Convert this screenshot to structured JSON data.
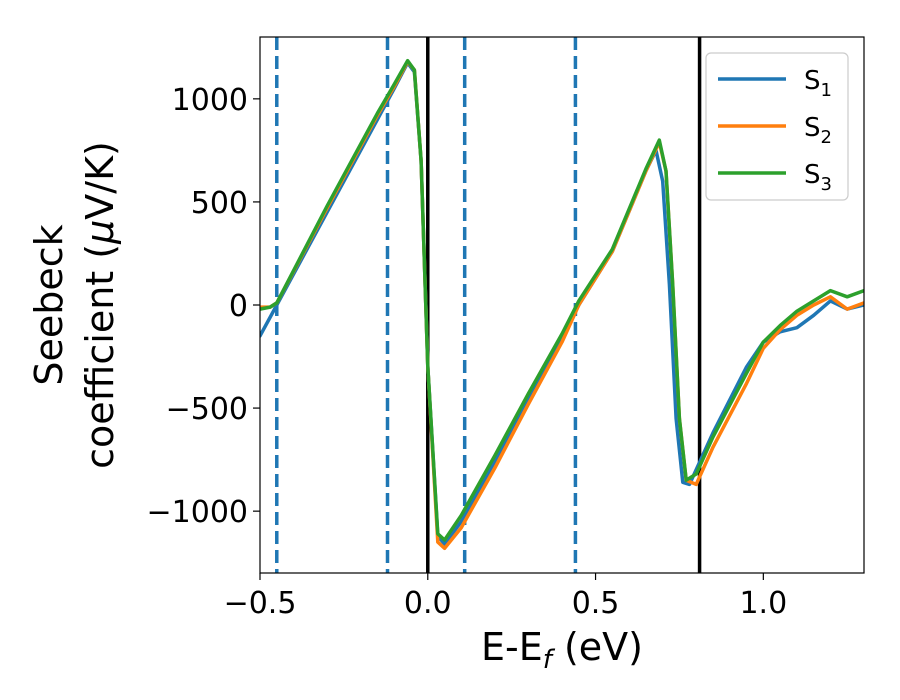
{
  "chart_data": {
    "type": "line",
    "xlabel": "E-E",
    "xlabel_sub": "f",
    "xlabel_unit": " (eV)",
    "ylabel_line1": "Seebeck",
    "ylabel_line2_a": "coefficient  (",
    "ylabel_mu": "μ",
    "ylabel_line2_b": "V/K)",
    "xlim": [
      -0.5,
      1.3
    ],
    "ylim": [
      -1300,
      1300
    ],
    "xticks": [
      -0.5,
      0.0,
      0.5,
      1.0
    ],
    "xtick_labels": [
      "−0.5",
      "0.0",
      "0.5",
      "1.0"
    ],
    "yticks": [
      1000,
      500,
      0,
      -500,
      -1000
    ],
    "ytick_labels": [
      "1000",
      "500",
      "0",
      "−500",
      "−1000"
    ],
    "grid": false,
    "legend_placement": "top-right",
    "vlines_dashed": [
      -0.45,
      -0.12,
      0.11,
      0.44
    ],
    "vlines_solid": [
      0.0,
      0.81
    ],
    "vline_dashed_color": "#1f77b4",
    "vline_solid_color": "#000000",
    "series": [
      {
        "name": "S",
        "sub": "1",
        "color": "#1f77b4",
        "points": [
          [
            -0.5,
            -150
          ],
          [
            -0.45,
            0
          ],
          [
            -0.3,
            450
          ],
          [
            -0.15,
            900
          ],
          [
            -0.1,
            1050
          ],
          [
            -0.06,
            1175
          ],
          [
            -0.04,
            1130
          ],
          [
            -0.02,
            700
          ],
          [
            0.0,
            -300
          ],
          [
            0.03,
            -1120
          ],
          [
            0.05,
            -1160
          ],
          [
            0.1,
            -1050
          ],
          [
            0.2,
            -760
          ],
          [
            0.3,
            -450
          ],
          [
            0.4,
            -150
          ],
          [
            0.45,
            0
          ],
          [
            0.55,
            260
          ],
          [
            0.65,
            650
          ],
          [
            0.68,
            750
          ],
          [
            0.7,
            600
          ],
          [
            0.72,
            100
          ],
          [
            0.74,
            -550
          ],
          [
            0.76,
            -860
          ],
          [
            0.78,
            -870
          ],
          [
            0.85,
            -620
          ],
          [
            0.95,
            -300
          ],
          [
            1.0,
            -180
          ],
          [
            1.05,
            -130
          ],
          [
            1.1,
            -110
          ],
          [
            1.15,
            -50
          ],
          [
            1.2,
            20
          ],
          [
            1.25,
            -20
          ],
          [
            1.3,
            0
          ]
        ]
      },
      {
        "name": "S",
        "sub": "2",
        "color": "#ff7f0e",
        "points": [
          [
            -0.5,
            -10
          ],
          [
            -0.47,
            -10
          ],
          [
            -0.45,
            10
          ],
          [
            -0.3,
            470
          ],
          [
            -0.15,
            920
          ],
          [
            -0.1,
            1060
          ],
          [
            -0.06,
            1180
          ],
          [
            -0.04,
            1140
          ],
          [
            -0.02,
            700
          ],
          [
            0.0,
            -300
          ],
          [
            0.03,
            -1150
          ],
          [
            0.05,
            -1180
          ],
          [
            0.1,
            -1080
          ],
          [
            0.2,
            -790
          ],
          [
            0.3,
            -480
          ],
          [
            0.4,
            -180
          ],
          [
            0.45,
            0
          ],
          [
            0.55,
            260
          ],
          [
            0.65,
            650
          ],
          [
            0.69,
            790
          ],
          [
            0.71,
            650
          ],
          [
            0.73,
            100
          ],
          [
            0.75,
            -550
          ],
          [
            0.77,
            -850
          ],
          [
            0.8,
            -870
          ],
          [
            0.85,
            -690
          ],
          [
            0.95,
            -380
          ],
          [
            1.0,
            -210
          ],
          [
            1.05,
            -120
          ],
          [
            1.1,
            -50
          ],
          [
            1.15,
            0
          ],
          [
            1.2,
            40
          ],
          [
            1.25,
            -20
          ],
          [
            1.3,
            10
          ]
        ]
      },
      {
        "name": "S",
        "sub": "3",
        "color": "#2ca02c",
        "points": [
          [
            -0.5,
            -20
          ],
          [
            -0.47,
            -10
          ],
          [
            -0.45,
            10
          ],
          [
            -0.3,
            480
          ],
          [
            -0.15,
            930
          ],
          [
            -0.1,
            1070
          ],
          [
            -0.06,
            1185
          ],
          [
            -0.04,
            1140
          ],
          [
            -0.02,
            700
          ],
          [
            0.0,
            -300
          ],
          [
            0.03,
            -1110
          ],
          [
            0.05,
            -1140
          ],
          [
            0.1,
            -1020
          ],
          [
            0.2,
            -730
          ],
          [
            0.3,
            -430
          ],
          [
            0.4,
            -140
          ],
          [
            0.45,
            20
          ],
          [
            0.55,
            270
          ],
          [
            0.65,
            660
          ],
          [
            0.69,
            800
          ],
          [
            0.71,
            650
          ],
          [
            0.73,
            100
          ],
          [
            0.75,
            -550
          ],
          [
            0.77,
            -850
          ],
          [
            0.8,
            -820
          ],
          [
            0.85,
            -640
          ],
          [
            0.95,
            -330
          ],
          [
            1.0,
            -180
          ],
          [
            1.05,
            -100
          ],
          [
            1.1,
            -30
          ],
          [
            1.15,
            20
          ],
          [
            1.2,
            70
          ],
          [
            1.25,
            40
          ],
          [
            1.3,
            70
          ]
        ]
      }
    ]
  }
}
